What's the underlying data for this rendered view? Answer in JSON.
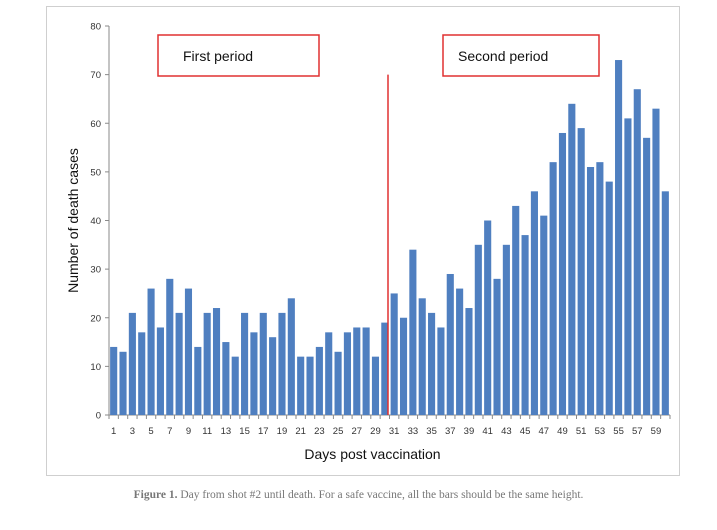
{
  "caption": {
    "label": "Figure 1.",
    "text": "Day from shot #2 until death. For a safe vaccine, all the bars should be the same height."
  },
  "chart_data": {
    "type": "bar",
    "xlabel": "Days post vaccination",
    "ylabel": "Number of death cases",
    "ylim": [
      0,
      80
    ],
    "yticks": [
      0,
      10,
      20,
      30,
      40,
      50,
      60,
      70,
      80
    ],
    "x": [
      1,
      2,
      3,
      4,
      5,
      6,
      7,
      8,
      9,
      10,
      11,
      12,
      13,
      14,
      15,
      16,
      17,
      18,
      19,
      20,
      21,
      22,
      23,
      24,
      25,
      26,
      27,
      28,
      29,
      30,
      31,
      32,
      33,
      34,
      35,
      36,
      37,
      38,
      39,
      40,
      41,
      42,
      43,
      45,
      44,
      46,
      47,
      48,
      49,
      50,
      51,
      52,
      53,
      54,
      55,
      56,
      57,
      58,
      59,
      60
    ],
    "xtick_labels": [
      "1",
      "3",
      "5",
      "7",
      "9",
      "11",
      "13",
      "15",
      "17",
      "19",
      "21",
      "23",
      "25",
      "27",
      "29",
      "31",
      "33",
      "35",
      "37",
      "39",
      "41",
      "43",
      "45",
      "47",
      "49",
      "51",
      "53",
      "55",
      "57",
      "59"
    ],
    "values": [
      14,
      13,
      21,
      17,
      26,
      18,
      28,
      21,
      26,
      14,
      21,
      22,
      15,
      12,
      21,
      17,
      21,
      16,
      21,
      24,
      12,
      12,
      14,
      17,
      13,
      17,
      18,
      18,
      12,
      19,
      25,
      20,
      34,
      24,
      21,
      18,
      29,
      26,
      22,
      35,
      40,
      28,
      35,
      43,
      37,
      46,
      41,
      52,
      58,
      64,
      59,
      51,
      52,
      48,
      73,
      61,
      67,
      57,
      63,
      46
    ],
    "bar_color": "#4f7fc0",
    "grid": false,
    "annotations": [
      {
        "label": "First period",
        "border_color": "#e03030"
      },
      {
        "label": "Second period",
        "border_color": "#e03030"
      }
    ],
    "divider": {
      "after_day": 30,
      "color": "#e03030"
    }
  }
}
